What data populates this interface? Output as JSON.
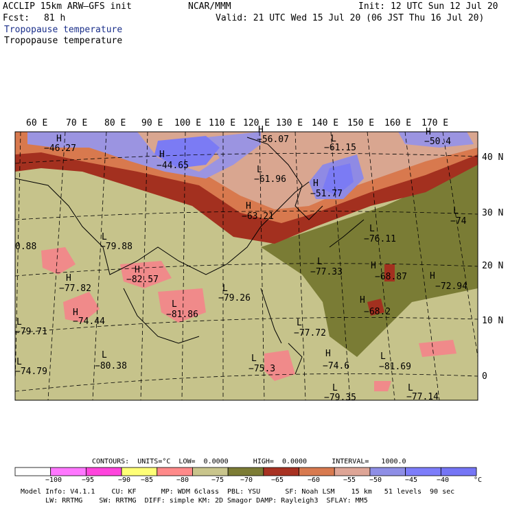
{
  "header": {
    "model": "ACCLIP 15km ARW–GFS init",
    "org": "NCAR/MMM",
    "init": "Init: 12 UTC Sun 12 Jul 20",
    "fcst_label": "Fcst:",
    "fcst_value": "81 h",
    "valid": "Valid: 21 UTC Wed 15 Jul 20 (06 JST Thu 16 Jul 20)",
    "field_title_1": "Tropopause temperature",
    "field_title_2": "Tropopause temperature"
  },
  "map": {
    "lon_labels": [
      "60 E",
      "70 E",
      "80 E",
      "90 E",
      "100 E",
      "110 E",
      "120 E",
      "130 E",
      "140 E",
      "150 E",
      "160 E",
      "170 E"
    ],
    "lat_labels": [
      "40 N",
      "30 N",
      "20 N",
      "10 N",
      "0"
    ],
    "annotations": [
      {
        "mark": "H",
        "value": "−46.27"
      },
      {
        "mark": "H",
        "value": "−44.65"
      },
      {
        "mark": "H",
        "value": "−56.07"
      },
      {
        "mark": "L",
        "value": "−61.96"
      },
      {
        "mark": "L",
        "value": "−61.15"
      },
      {
        "mark": "H",
        "value": "−50.4"
      },
      {
        "mark": "H",
        "value": "−51.77"
      },
      {
        "mark": "H",
        "value": "−63.21"
      },
      {
        "mark": "L",
        "value": "−74"
      },
      {
        "mark": "L",
        "value": "−76.11"
      },
      {
        "mark": "L",
        "value": "−79.88"
      },
      {
        "mark": "H",
        "value": "−82.57"
      },
      {
        "mark": "L",
        "value": "−77.33"
      },
      {
        "mark": "H",
        "value": "−68.87"
      },
      {
        "mark": "H",
        "value": "−72.94"
      },
      {
        "mark": "H",
        "value": "−77.82"
      },
      {
        "mark": "L",
        "value": "−79.26"
      },
      {
        "mark": "L",
        "value": "−81.86"
      },
      {
        "mark": "H",
        "value": "−68.2"
      },
      {
        "mark": "H",
        "value": "−74.44"
      },
      {
        "mark": "L",
        "value": "−79.71"
      },
      {
        "mark": "L",
        "value": "−77.72"
      },
      {
        "mark": "L",
        "value": "−80.38"
      },
      {
        "mark": "H",
        "value": "−74.6"
      },
      {
        "mark": "L",
        "value": "−81.69"
      },
      {
        "mark": "L",
        "value": "−74.79"
      },
      {
        "mark": "L",
        "value": "−75.3"
      },
      {
        "mark": "L",
        "value": "−79.35"
      },
      {
        "mark": "L",
        "value": "−77.14"
      },
      {
        "mark": "",
        "value": "0.88"
      }
    ]
  },
  "colorbar": {
    "info": "CONTOURS:  UNITS=°C  LOW=  0.0000      HIGH=  0.0000      INTERVAL=   1000.0",
    "tick_labels": [
      "−100",
      "−95",
      "−90",
      "−85",
      "−80",
      "−75",
      "−70",
      "−65",
      "−60",
      "−55",
      "−50",
      "−45",
      "−40",
      "°C"
    ],
    "colors": [
      "#ffffff",
      "#ff77ff",
      "#ff44dd",
      "#ffff77",
      "#ff8a8a",
      "#c9c58c",
      "#7c7c35",
      "#a83222",
      "#d87a4f",
      "#dea596",
      "#8e8ee6",
      "#7d7dfa",
      "#7575f5"
    ]
  },
  "footer": {
    "line1": "Model Info: V4.1.1    CU: KF      MP: WDM 6class  PBL: YSU      SF: Noah LSM    15 km   51 levels  90 sec",
    "line2": "      LW: RRTMG    SW: RRTMG  DIFF: simple KM: 2D Smagor DAMP: Rayleigh3  SFLAY: MM5"
  },
  "palette": {
    "olive_light": "#c6c38b",
    "olive_dark": "#7a7c35",
    "dark_red": "#a3301f",
    "orange": "#d8794e",
    "peach": "#d9a690",
    "lavender": "#9b94e1",
    "blue": "#7b7bf4",
    "pink": "#f08a8a"
  }
}
